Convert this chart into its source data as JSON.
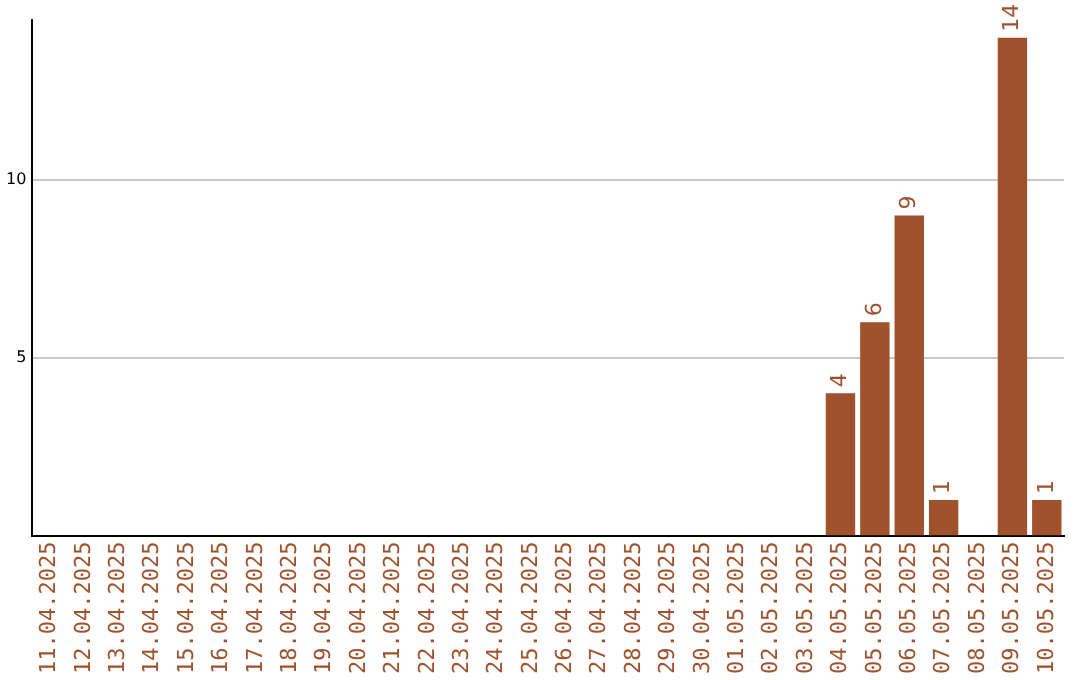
{
  "chart_data": {
    "type": "bar",
    "categories": [
      "11.04.2025",
      "12.04.2025",
      "13.04.2025",
      "14.04.2025",
      "15.04.2025",
      "16.04.2025",
      "17.04.2025",
      "18.04.2025",
      "19.04.2025",
      "20.04.2025",
      "21.04.2025",
      "22.04.2025",
      "23.04.2025",
      "24.04.2025",
      "25.04.2025",
      "26.04.2025",
      "27.04.2025",
      "28.04.2025",
      "29.04.2025",
      "30.04.2025",
      "01.05.2025",
      "02.05.2025",
      "03.05.2025",
      "04.05.2025",
      "05.05.2025",
      "06.05.2025",
      "07.05.2025",
      "08.05.2025",
      "09.05.2025",
      "10.05.2025"
    ],
    "values": [
      0,
      0,
      0,
      0,
      0,
      0,
      0,
      0,
      0,
      0,
      0,
      0,
      0,
      0,
      0,
      0,
      0,
      0,
      0,
      0,
      0,
      0,
      0,
      4,
      6,
      9,
      1,
      0,
      14,
      1
    ],
    "value_labels": [
      null,
      null,
      null,
      null,
      null,
      null,
      null,
      null,
      null,
      null,
      null,
      null,
      null,
      null,
      null,
      null,
      null,
      null,
      null,
      null,
      null,
      null,
      null,
      "4",
      "6",
      "9",
      "1",
      null,
      "14",
      "1"
    ],
    "color": "#a0522d",
    "ylim": [
      0,
      14.5
    ],
    "yticks": [
      5,
      10
    ],
    "grid": "y",
    "legend": false
  }
}
